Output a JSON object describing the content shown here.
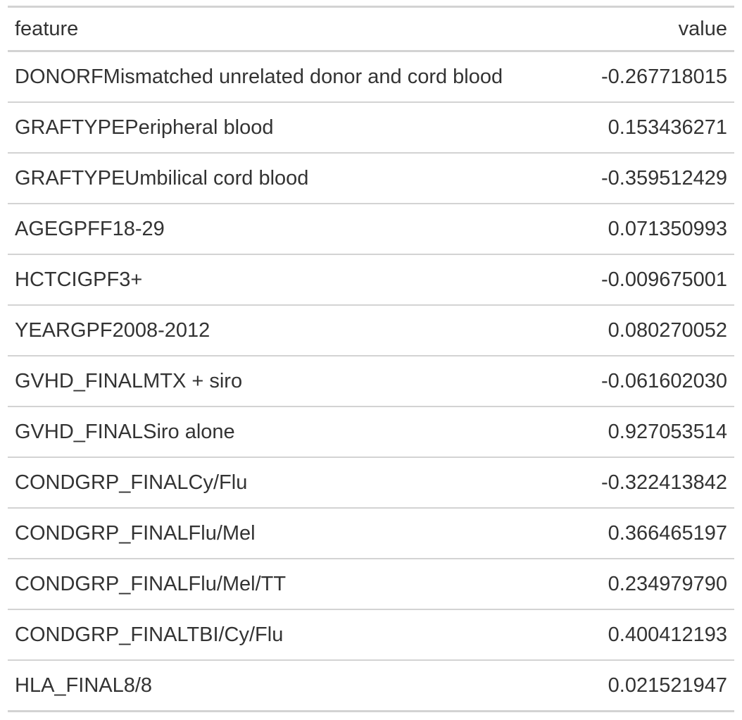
{
  "table": {
    "headers": {
      "feature": "feature",
      "value": "value"
    },
    "rows": [
      {
        "feature": "DONORFMismatched unrelated donor and cord blood",
        "value": "-0.267718015"
      },
      {
        "feature": "GRAFTYPEPeripheral blood",
        "value": "0.153436271"
      },
      {
        "feature": "GRAFTYPEUmbilical cord blood",
        "value": "-0.359512429"
      },
      {
        "feature": "AGEGPFF18-29",
        "value": "0.071350993"
      },
      {
        "feature": "HCTCIGPF3+",
        "value": "-0.009675001"
      },
      {
        "feature": "YEARGPF2008-2012",
        "value": "0.080270052"
      },
      {
        "feature": "GVHD_FINALMTX + siro",
        "value": "-0.061602030"
      },
      {
        "feature": "GVHD_FINALSiro alone",
        "value": "0.927053514"
      },
      {
        "feature": "CONDGRP_FINALCy/Flu",
        "value": "-0.322413842"
      },
      {
        "feature": "CONDGRP_FINALFlu/Mel",
        "value": "0.366465197"
      },
      {
        "feature": "CONDGRP_FINALFlu/Mel/TT",
        "value": "0.234979790"
      },
      {
        "feature": "CONDGRP_FINALTBI/Cy/Flu",
        "value": "0.400412193"
      },
      {
        "feature": "HLA_FINAL8/8",
        "value": "0.021521947"
      }
    ]
  }
}
